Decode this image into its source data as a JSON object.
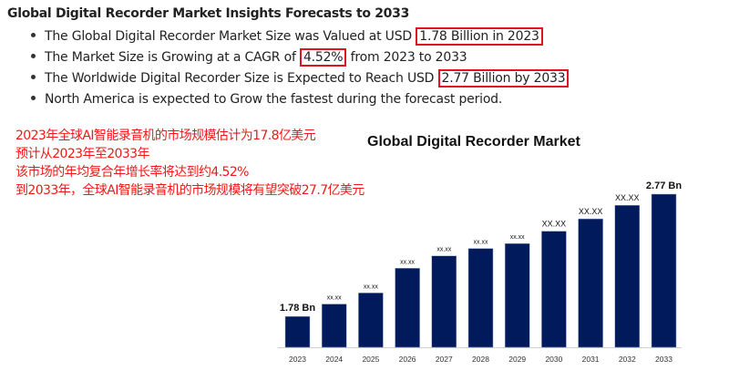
{
  "header": {
    "title": "Global Digital Recorder Market Insights Forecasts to 2033"
  },
  "bullets": [
    {
      "text": "The Global Digital Recorder Market Size was Valued at USD ",
      "highlight": "1.78 Billion in 2023",
      "after": ""
    },
    {
      "text": "The Market Size is Growing at a CAGR of ",
      "highlight": "4.52%",
      "after": " from 2023 to 2033"
    },
    {
      "text": "The Worldwide Digital Recorder Size is Expected to Reach USD ",
      "highlight": "2.77 Billion by 2033",
      "after": ""
    },
    {
      "text": "North America is expected to Grow the fastest during the forecast period.",
      "highlight": "",
      "after": ""
    }
  ],
  "annotation_zh": [
    "2023年全球AI智能录音机的市场规模估计为17.8亿美元",
    "预计从2023年至2033年",
    "该市场的年均复合年增长率将达到约4.52%",
    "到2033年，全球AI智能录音机的市场规模将有望突破27.7亿美元"
  ],
  "colors": {
    "bar": "#001a5c",
    "highlight_box": "#e0141e",
    "annotation": "#f01818"
  },
  "chart_data": {
    "type": "bar",
    "title": "Global Digital Recorder Market",
    "categories": [
      "2023",
      "2024",
      "2025",
      "2026",
      "2027",
      "2028",
      "2029",
      "2030",
      "2031",
      "2032",
      "2033"
    ],
    "values": [
      1.78,
      1.88,
      1.97,
      2.17,
      2.27,
      2.33,
      2.37,
      2.47,
      2.57,
      2.68,
      2.77
    ],
    "data_labels": [
      "1.78 Bn",
      "xx.xx",
      "xx.xx",
      "xx.xx",
      "xx.xx",
      "xx.xx",
      "xx.xx",
      "XX.XX",
      "XX.XX",
      "XX.XX",
      "2.77 Bn"
    ],
    "xlabel": "",
    "ylabel": "",
    "ylim": [
      1.53,
      2.77
    ],
    "grid": false,
    "legend": "none"
  }
}
